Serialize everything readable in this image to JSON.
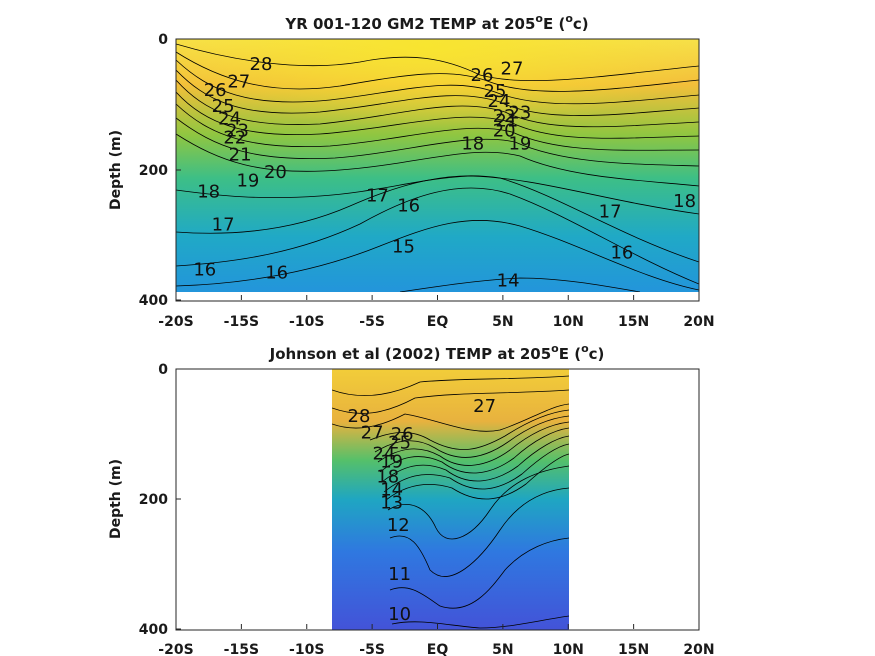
{
  "chart_data": [
    {
      "type": "contour",
      "title": "YR 001-120 GM2 TEMP at 205",
      "title_sup": "o",
      "title_tail": "E (",
      "title_sup2": "o",
      "title_end": "c)",
      "ylabel": "Depth (m)",
      "xlabel": "",
      "x_ticks": [
        "-20S",
        "-15S",
        "-10S",
        "-5S",
        "EQ",
        "5N",
        "10N",
        "15N",
        "20N"
      ],
      "y_ticks": [
        "0",
        "200",
        "400"
      ],
      "xlim": [
        -20,
        20
      ],
      "ylim": [
        0,
        400
      ],
      "data_extent_x": [
        -20,
        20
      ],
      "data_extent_y": [
        0,
        385
      ],
      "colormap": "parula",
      "color_range": [
        8,
        30
      ],
      "contour_labels": [
        {
          "text": "28",
          "lat": -13.5,
          "depth": 38
        },
        {
          "text": "27",
          "lat": -15.2,
          "depth": 65
        },
        {
          "text": "26",
          "lat": -17.0,
          "depth": 78
        },
        {
          "text": "25",
          "lat": -16.4,
          "depth": 103
        },
        {
          "text": "24",
          "lat": -15.9,
          "depth": 122
        },
        {
          "text": "23",
          "lat": -15.3,
          "depth": 140
        },
        {
          "text": "22",
          "lat": -15.5,
          "depth": 151
        },
        {
          "text": "21",
          "lat": -15.1,
          "depth": 177
        },
        {
          "text": "20",
          "lat": -12.4,
          "depth": 204
        },
        {
          "text": "19",
          "lat": -14.5,
          "depth": 217
        },
        {
          "text": "18",
          "lat": -17.5,
          "depth": 234
        },
        {
          "text": "17",
          "lat": -16.4,
          "depth": 284
        },
        {
          "text": "16",
          "lat": -17.8,
          "depth": 353
        },
        {
          "text": "16",
          "lat": -12.3,
          "depth": 358
        },
        {
          "text": "17",
          "lat": -4.6,
          "depth": 240
        },
        {
          "text": "16",
          "lat": -2.2,
          "depth": 255
        },
        {
          "text": "15",
          "lat": -2.6,
          "depth": 318
        },
        {
          "text": "14",
          "lat": 5.4,
          "depth": 370
        },
        {
          "text": "18",
          "lat": 2.7,
          "depth": 160
        },
        {
          "text": "19",
          "lat": 6.3,
          "depth": 160
        },
        {
          "text": "20",
          "lat": 5.1,
          "depth": 140
        },
        {
          "text": "21",
          "lat": 5.3,
          "depth": 125
        },
        {
          "text": "22",
          "lat": 5.1,
          "depth": 118
        },
        {
          "text": "23",
          "lat": 6.3,
          "depth": 113
        },
        {
          "text": "24",
          "lat": 4.7,
          "depth": 95
        },
        {
          "text": "25",
          "lat": 4.4,
          "depth": 80
        },
        {
          "text": "26",
          "lat": 3.4,
          "depth": 55
        },
        {
          "text": "27",
          "lat": 5.7,
          "depth": 45
        },
        {
          "text": "17",
          "lat": 13.2,
          "depth": 264
        },
        {
          "text": "16",
          "lat": 14.1,
          "depth": 327
        },
        {
          "text": "18",
          "lat": 18.9,
          "depth": 248
        }
      ]
    },
    {
      "type": "contour",
      "title": "Johnson et al (2002) TEMP at 205",
      "title_sup": "o",
      "title_tail": "E (",
      "title_sup2": "o",
      "title_end": "c)",
      "ylabel": "Depth (m)",
      "xlabel": "",
      "x_ticks": [
        "-20S",
        "-15S",
        "-10S",
        "-5S",
        "EQ",
        "5N",
        "10N",
        "15N",
        "20N"
      ],
      "y_ticks": [
        "0",
        "200",
        "400"
      ],
      "xlim": [
        -20,
        20
      ],
      "ylim": [
        0,
        400
      ],
      "data_extent_x": [
        -8,
        10
      ],
      "data_extent_y": [
        0,
        400
      ],
      "colormap": "parula",
      "color_range": [
        8,
        30
      ],
      "contour_labels": [
        {
          "text": "28",
          "lat": -6.0,
          "depth": 72
        },
        {
          "text": "27",
          "lat": -5.0,
          "depth": 98
        },
        {
          "text": "26",
          "lat": -2.7,
          "depth": 100
        },
        {
          "text": "25",
          "lat": -2.9,
          "depth": 113
        },
        {
          "text": "24",
          "lat": -4.1,
          "depth": 130
        },
        {
          "text": "19",
          "lat": -3.5,
          "depth": 142
        },
        {
          "text": "18",
          "lat": -3.8,
          "depth": 165
        },
        {
          "text": "14",
          "lat": -3.5,
          "depth": 185
        },
        {
          "text": "13",
          "lat": -3.5,
          "depth": 205
        },
        {
          "text": "12",
          "lat": -3.0,
          "depth": 240
        },
        {
          "text": "11",
          "lat": -2.9,
          "depth": 315
        },
        {
          "text": "10",
          "lat": -2.9,
          "depth": 377
        },
        {
          "text": "27",
          "lat": 3.6,
          "depth": 57
        }
      ]
    }
  ]
}
